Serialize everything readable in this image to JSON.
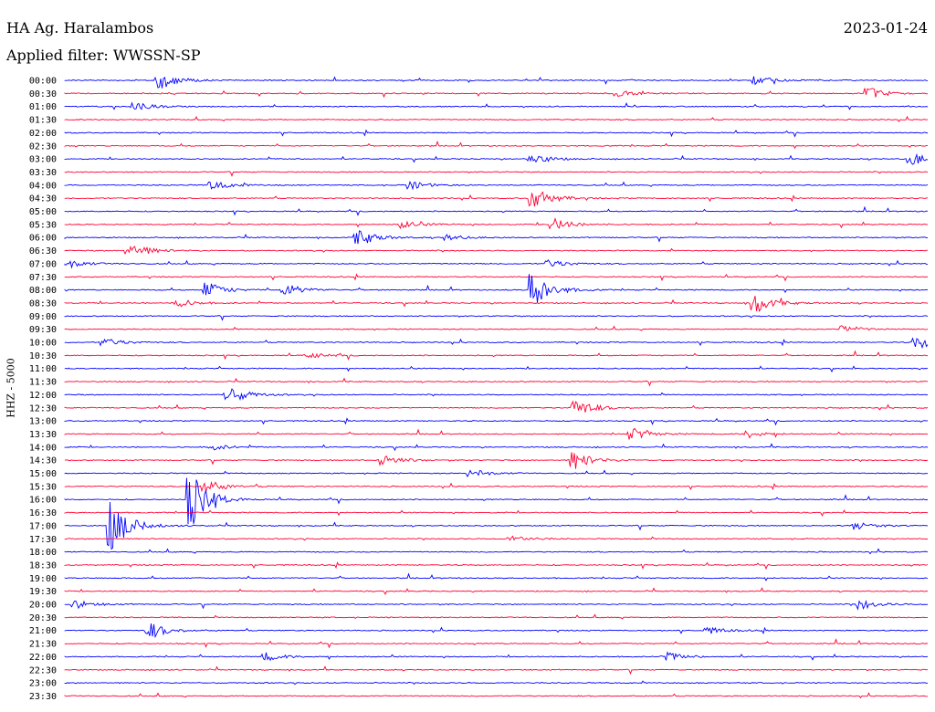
{
  "header": {
    "station": "HA Ag. Haralambos",
    "date": "2023-01-24",
    "filter": "Applied filter: WWSSN-SP"
  },
  "chart_data": {
    "type": "line",
    "ylabel": "HHZ - 5000",
    "colors": {
      "even": "#0000ff",
      "odd": "#ff0033"
    },
    "rows": [
      "00:00",
      "00:30",
      "01:00",
      "01:30",
      "02:00",
      "02:30",
      "03:00",
      "03:30",
      "04:00",
      "04:30",
      "05:00",
      "05:30",
      "06:00",
      "06:30",
      "07:00",
      "07:30",
      "08:00",
      "08:30",
      "09:00",
      "09:30",
      "10:00",
      "10:30",
      "11:00",
      "11:30",
      "12:00",
      "12:30",
      "13:00",
      "13:30",
      "14:00",
      "14:30",
      "15:00",
      "15:30",
      "16:00",
      "16:30",
      "17:00",
      "17:30",
      "18:00",
      "18:30",
      "19:00",
      "19:30",
      "20:00",
      "20:30",
      "21:00",
      "21:30",
      "22:00",
      "22:30",
      "23:00",
      "23:30"
    ],
    "events": [
      {
        "row": "00:00",
        "at": 0.108,
        "amp": 9
      },
      {
        "row": "00:00",
        "at": 0.8,
        "amp": 4
      },
      {
        "row": "00:30",
        "at": 0.64,
        "amp": 3
      },
      {
        "row": "00:30",
        "at": 0.93,
        "amp": 6
      },
      {
        "row": "01:00",
        "at": 0.08,
        "amp": 4
      },
      {
        "row": "03:00",
        "at": 0.54,
        "amp": 5
      },
      {
        "row": "03:00",
        "at": 0.98,
        "amp": 6
      },
      {
        "row": "04:00",
        "at": 0.17,
        "amp": 5
      },
      {
        "row": "04:00",
        "at": 0.4,
        "amp": 4
      },
      {
        "row": "04:30",
        "at": 0.542,
        "amp": 11
      },
      {
        "row": "05:30",
        "at": 0.39,
        "amp": 4
      },
      {
        "row": "05:30",
        "at": 0.565,
        "amp": 6
      },
      {
        "row": "06:00",
        "at": 0.34,
        "amp": 8
      },
      {
        "row": "06:00",
        "at": 0.44,
        "amp": 3
      },
      {
        "row": "06:30",
        "at": 0.073,
        "amp": 9
      },
      {
        "row": "07:00",
        "at": 0.0,
        "amp": 5
      },
      {
        "row": "07:00",
        "at": 0.56,
        "amp": 4
      },
      {
        "row": "08:00",
        "at": 0.163,
        "amp": 8
      },
      {
        "row": "08:00",
        "at": 0.254,
        "amp": 6
      },
      {
        "row": "08:00",
        "at": 0.541,
        "amp": 18
      },
      {
        "row": "08:30",
        "at": 0.13,
        "amp": 4
      },
      {
        "row": "08:30",
        "at": 0.799,
        "amp": 10
      },
      {
        "row": "09:30",
        "at": 0.9,
        "amp": 4
      },
      {
        "row": "10:00",
        "at": 0.045,
        "amp": 4
      },
      {
        "row": "10:00",
        "at": 0.985,
        "amp": 7
      },
      {
        "row": "10:30",
        "at": 0.28,
        "amp": 3
      },
      {
        "row": "12:00",
        "at": 0.188,
        "amp": 9
      },
      {
        "row": "12:30",
        "at": 0.591,
        "amp": 9
      },
      {
        "row": "13:30",
        "at": 0.655,
        "amp": 6
      },
      {
        "row": "13:30",
        "at": 0.79,
        "amp": 4
      },
      {
        "row": "14:00",
        "at": 0.17,
        "amp": 3
      },
      {
        "row": "14:30",
        "at": 0.366,
        "amp": 6
      },
      {
        "row": "14:30",
        "at": 0.587,
        "amp": 10
      },
      {
        "row": "15:00",
        "at": 0.47,
        "amp": 4
      },
      {
        "row": "15:30",
        "at": 0.161,
        "amp": 7
      },
      {
        "row": "16:00",
        "at": 0.144,
        "amp": 28
      },
      {
        "row": "17:00",
        "at": 0.052,
        "amp": 26
      },
      {
        "row": "17:00",
        "at": 0.915,
        "amp": 4
      },
      {
        "row": "17:30",
        "at": 0.514,
        "amp": 4
      },
      {
        "row": "20:00",
        "at": 0.01,
        "amp": 4
      },
      {
        "row": "20:00",
        "at": 0.92,
        "amp": 5
      },
      {
        "row": "21:00",
        "at": 0.097,
        "amp": 8
      },
      {
        "row": "21:00",
        "at": 0.745,
        "amp": 3
      },
      {
        "row": "22:00",
        "at": 0.232,
        "amp": 4
      },
      {
        "row": "22:00",
        "at": 0.694,
        "amp": 5
      }
    ]
  }
}
